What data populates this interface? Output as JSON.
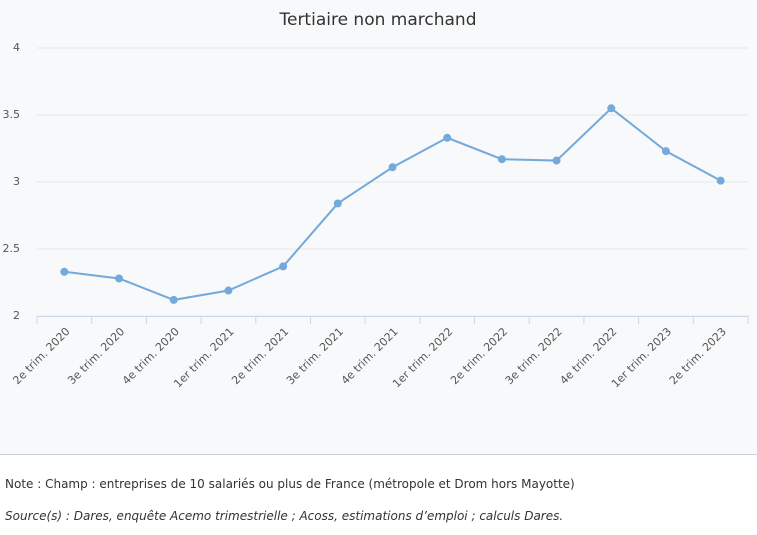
{
  "chart_data": {
    "type": "line",
    "title": "Tertiaire non marchand",
    "categories": [
      "2e trim. 2020",
      "3e trim. 2020",
      "4e trim. 2020",
      "1er trim. 2021",
      "2e trim. 2021",
      "3e trim. 2021",
      "4e trim. 2021",
      "1er trim. 2022",
      "2e trim. 2022",
      "3e trim. 2022",
      "4e trim. 2022",
      "1er trim. 2023",
      "2e trim. 2023"
    ],
    "values": [
      2.33,
      2.28,
      2.12,
      2.19,
      2.37,
      2.84,
      3.11,
      3.33,
      3.17,
      3.16,
      3.55,
      3.23,
      3.01
    ],
    "color": "#74a9db",
    "ylim": [
      2,
      4
    ],
    "yticks": [
      2,
      2.5,
      3,
      3.5,
      4
    ],
    "grid": true
  },
  "footer": {
    "note": "Note : Champ : entreprises de 10 salariés ou plus de France (métropole et Drom hors Mayotte)",
    "source": "Source(s) : Dares, enquête Acemo trimestrielle ; Acoss, estimations d’emploi ; calculs Dares."
  }
}
